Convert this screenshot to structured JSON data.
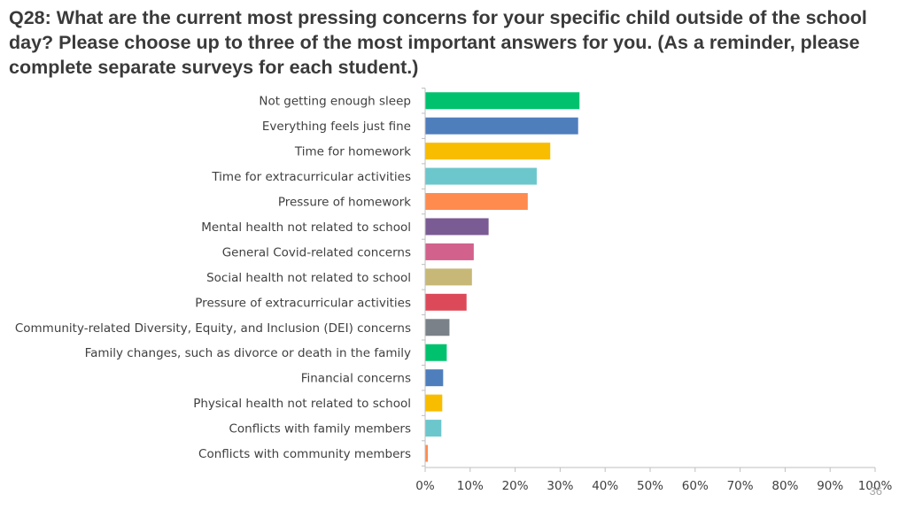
{
  "slide": {
    "title": "Q28: What are the current most pressing concerns for your specific child outside of the school day? Please choose up to three of the most important answers for you. (As a reminder, please complete separate surveys for each student.)",
    "page_number": "36"
  },
  "chart_data": {
    "type": "bar",
    "orientation": "horizontal",
    "title": "",
    "xlabel": "",
    "ylabel": "",
    "xlim": [
      0,
      100
    ],
    "x_ticks": [
      "0%",
      "10%",
      "20%",
      "30%",
      "40%",
      "50%",
      "60%",
      "70%",
      "80%",
      "90%",
      "100%"
    ],
    "grid": false,
    "legend": "none",
    "categories": [
      "Not getting enough sleep",
      "Everything feels just fine",
      "Time for homework",
      "Time for extracurricular activities",
      "Pressure of homework",
      "Mental health not related to school",
      "General Covid-related concerns",
      "Social health not related to school",
      "Pressure of extracurricular activities",
      "Community-related Diversity, Equity, and Inclusion (DEI) concerns",
      "Family changes, such as divorce or death in the family",
      "Financial concerns",
      "Physical health not related to school",
      "Conflicts with family members",
      "Conflicts with community members"
    ],
    "values": [
      34.3,
      34.0,
      27.8,
      24.8,
      22.8,
      14.1,
      10.8,
      10.4,
      9.2,
      5.4,
      4.8,
      4.0,
      3.8,
      3.6,
      0.6
    ],
    "colors": [
      "#00c26e",
      "#4f7ebd",
      "#f9bd00",
      "#6cc7cd",
      "#ff8b4f",
      "#7b5b93",
      "#d2618c",
      "#c7b877",
      "#dc4a5a",
      "#7a8189",
      "#00c26e",
      "#4f7ebd",
      "#f9bd00",
      "#6cc7cd",
      "#ff8b4f"
    ],
    "axis_color": "#bfbfbf"
  }
}
